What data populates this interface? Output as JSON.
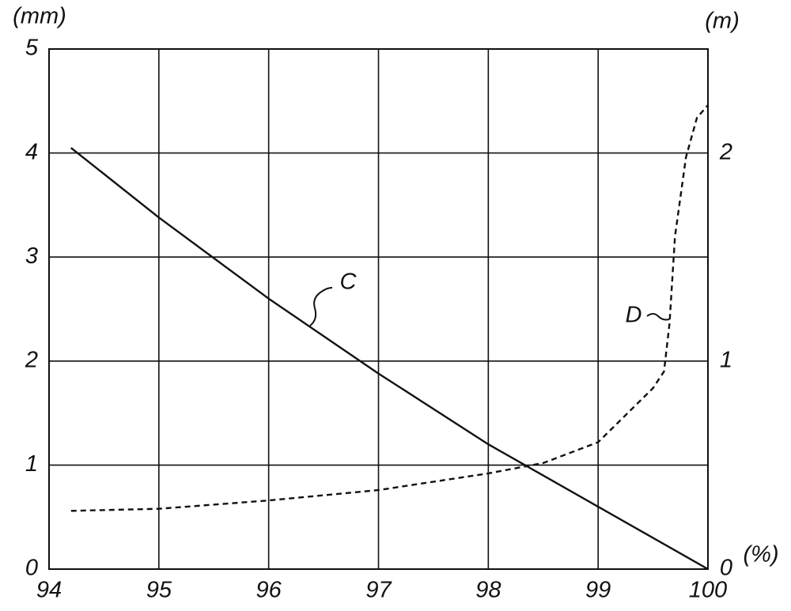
{
  "chart_data": {
    "type": "line",
    "x_label": "(%)",
    "y_label": "(mm)",
    "y2_label": "(m)",
    "xlim": [
      94,
      100
    ],
    "xticks": [
      94,
      95,
      96,
      97,
      98,
      99,
      100
    ],
    "ylim": [
      0,
      5
    ],
    "yticks": [
      0,
      1,
      2,
      3,
      4,
      5
    ],
    "y2lim": [
      0,
      2.5
    ],
    "y2ticks": [
      0,
      1,
      2
    ],
    "grid": true,
    "series": [
      {
        "name": "C",
        "color": "#111111",
        "dash": false,
        "x": [
          94.2,
          95,
          96,
          97,
          98,
          99,
          100
        ],
        "values": [
          4.05,
          3.38,
          2.6,
          1.88,
          1.2,
          0.6,
          0
        ]
      },
      {
        "name": "D",
        "color": "#111111",
        "dash": true,
        "axis": "y2",
        "x": [
          94.2,
          95,
          96,
          97,
          98,
          98.5,
          99,
          99.5,
          99.6,
          99.65,
          99.7,
          99.8,
          99.9,
          100
        ],
        "values": [
          0.28,
          0.29,
          0.33,
          0.38,
          0.46,
          0.51,
          0.61,
          0.87,
          0.95,
          1.18,
          1.6,
          1.98,
          2.17,
          2.23
        ]
      }
    ]
  }
}
